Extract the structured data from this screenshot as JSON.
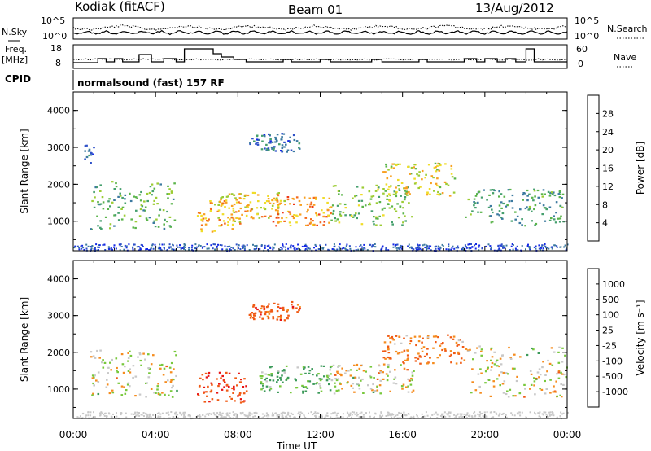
{
  "header": {
    "station": "Kodiak (fitACF)",
    "beam": "Beam 01",
    "date": "13/Aug/2012"
  },
  "top_panel": {
    "nsky_label": "N.Sky",
    "nsearch_label": "N.Search",
    "left_ticks": [
      "10^5",
      "10^0"
    ],
    "right_ticks": [
      "10^5",
      "10^0"
    ],
    "freq_label": "Freq.",
    "freq_unit": "[MHz]",
    "freq_ticks": [
      "18",
      "8"
    ],
    "nave_label": "Nave",
    "nave_ticks": [
      "60",
      "0"
    ],
    "cpid_label": "CPID",
    "cpid_text": "normalsound (fast) 157 RF"
  },
  "colors": {
    "power_scale": [
      "#1428e6",
      "#2d50c8",
      "#3c7aa0",
      "#46a06e",
      "#5ab44a",
      "#9ccc34",
      "#f0dc28",
      "#f8a020",
      "#f46a1c",
      "#ee3a18",
      "#e01010"
    ],
    "velocity_scale": [
      "#e81414",
      "#f05a14",
      "#f58c1e",
      "#c8c8c8",
      "#c8c8c8",
      "#78c83c",
      "#3c9a5a",
      "#3064b4",
      "#2040c8"
    ]
  },
  "chart_data": [
    {
      "type": "heatmap",
      "title": "",
      "xlabel": "",
      "ylabel": "Slant Range [km]",
      "x_ticks": [
        "00:00",
        "04:00",
        "08:00",
        "12:00",
        "16:00",
        "20:00",
        "00:00"
      ],
      "y_ticks": [
        "1000",
        "2000",
        "3000",
        "4000"
      ],
      "ylim": [
        200,
        4500
      ],
      "xlim_hours": [
        0,
        24
      ],
      "colorbar": {
        "label": "Power [dB]",
        "ticks": [
          "4",
          "8",
          "12",
          "16",
          "20",
          "24",
          "28"
        ],
        "range": [
          0,
          32
        ]
      },
      "regions": [
        {
          "t0": 0.8,
          "t1": 5.0,
          "r0": 800,
          "r1": 2100,
          "power": 12
        },
        {
          "t0": 0.5,
          "t1": 1.0,
          "r0": 2600,
          "r1": 3100,
          "power": 4
        },
        {
          "t0": 6.0,
          "t1": 8.2,
          "r0": 700,
          "r1": 1600,
          "power": 22
        },
        {
          "t0": 7.0,
          "t1": 10.5,
          "r0": 1100,
          "r1": 1800,
          "power": 20
        },
        {
          "t0": 9.5,
          "t1": 12.5,
          "r0": 900,
          "r1": 1700,
          "power": 24
        },
        {
          "t0": 12.5,
          "t1": 16.5,
          "r0": 900,
          "r1": 2000,
          "power": 14
        },
        {
          "t0": 15.0,
          "t1": 18.5,
          "r0": 1700,
          "r1": 2600,
          "power": 18
        },
        {
          "t0": 19.0,
          "t1": 23.8,
          "r0": 900,
          "r1": 1900,
          "power": 10
        },
        {
          "t0": 8.5,
          "t1": 11.0,
          "r0": 2900,
          "r1": 3400,
          "power": 6
        }
      ]
    },
    {
      "type": "heatmap",
      "title": "",
      "xlabel": "Time UT",
      "ylabel": "Slant Range [km]",
      "x_ticks": [
        "00:00",
        "04:00",
        "08:00",
        "12:00",
        "16:00",
        "20:00",
        "00:00"
      ],
      "y_ticks": [
        "1000",
        "2000",
        "3000",
        "4000"
      ],
      "ylim": [
        200,
        4500
      ],
      "xlim_hours": [
        0,
        24
      ],
      "colorbar": {
        "label": "Velocity [m s⁻¹]",
        "ticks": [
          "1000",
          "500",
          "100",
          "25",
          "-25",
          "-100",
          "-500",
          "-1000"
        ],
        "range": [
          -1000,
          1000
        ]
      },
      "regions": [
        {
          "t0": 0.8,
          "t1": 5.0,
          "r0": 800,
          "r1": 2100,
          "velocity": 0
        },
        {
          "t0": 6.0,
          "t1": 8.5,
          "r0": 650,
          "r1": 1500,
          "velocity": -300
        },
        {
          "t0": 9.0,
          "t1": 12.5,
          "r0": 900,
          "r1": 1700,
          "velocity": 150
        },
        {
          "t0": 12.5,
          "t1": 16.5,
          "r0": 900,
          "r1": 1700,
          "velocity": 0
        },
        {
          "t0": 15.0,
          "t1": 19.0,
          "r0": 1700,
          "r1": 2500,
          "velocity": -150
        },
        {
          "t0": 19.0,
          "t1": 24.0,
          "r0": 800,
          "r1": 2200,
          "velocity": 0
        },
        {
          "t0": 8.5,
          "t1": 11.0,
          "r0": 2900,
          "r1": 3400,
          "velocity": -200
        }
      ]
    }
  ]
}
